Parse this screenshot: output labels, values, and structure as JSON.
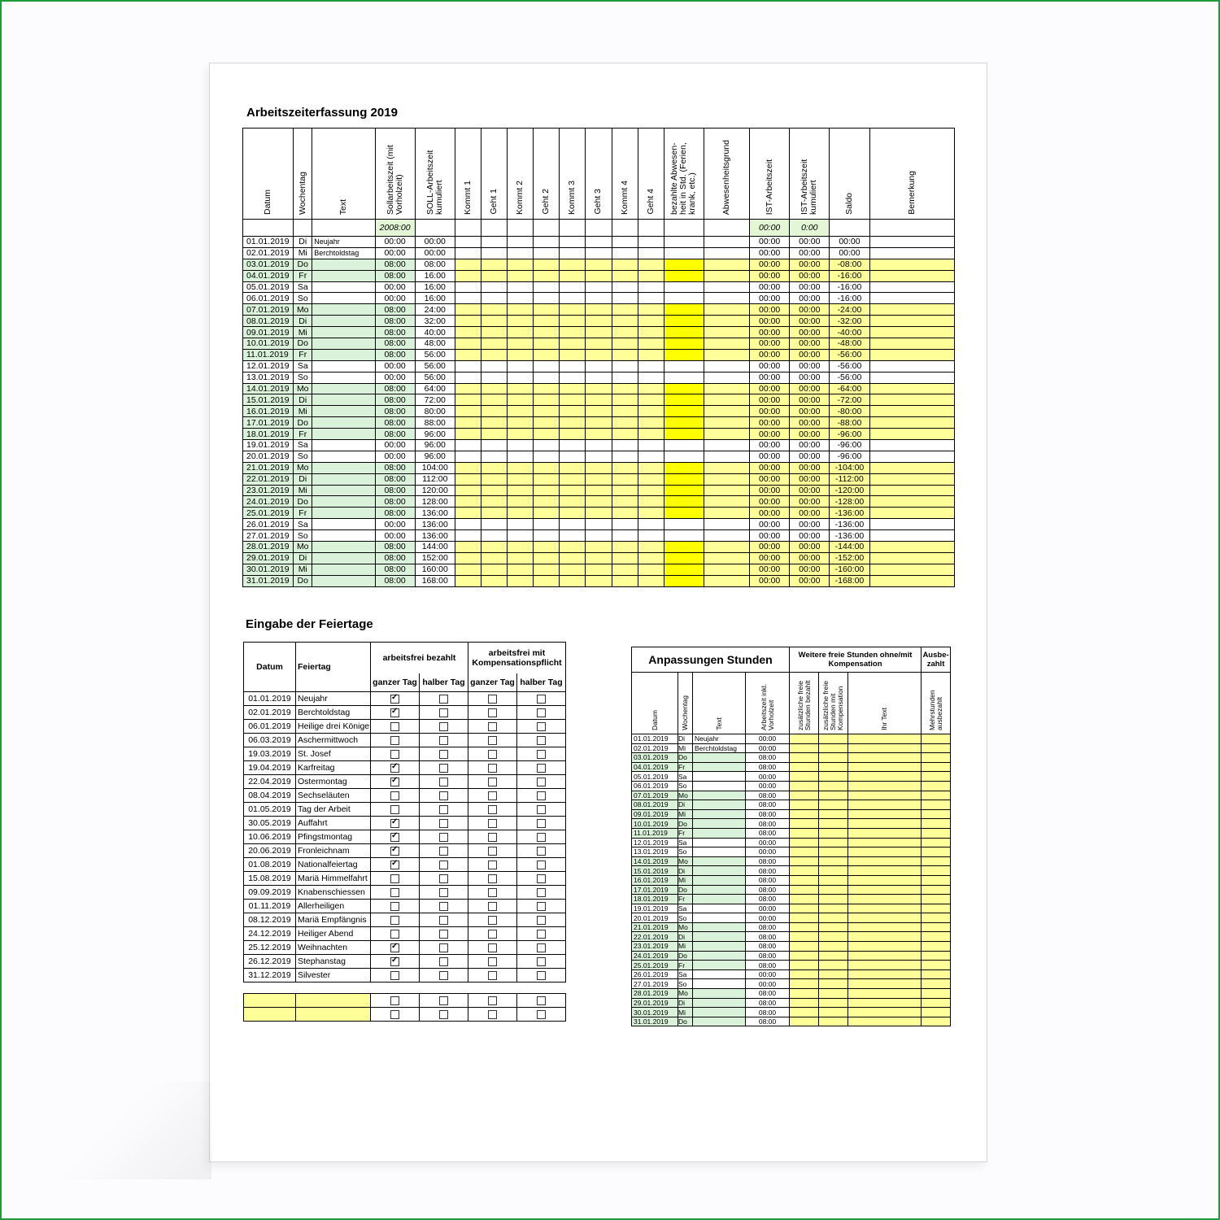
{
  "title_main": "Arbeitszeiterfassung   2019",
  "title_holidays": "Eingabe der Feiertage",
  "main": {
    "headers": [
      "Datum",
      "Wochentag",
      "Text",
      "Sollarbeitszeit (mit Vorholzeit)",
      "SOLL-Arbeitszeit kumuliert",
      "Kommt 1",
      "Geht 1",
      "Kommt 2",
      "Geht 2",
      "Kommt 3",
      "Geht 3",
      "Kommt 4",
      "Geht 4",
      "bezahlte Abwesen-heit in Std. (Ferien, krank, etc.)",
      "Abwesenheitsgrund",
      "IST-Arbeitszeit",
      "IST-Arbeitszeit kumuliert",
      "Saldo",
      "Bemerkung"
    ],
    "summary": {
      "soll": "2008:00",
      "ist": "00:00",
      "ist_kum": "0:00"
    },
    "rows": [
      [
        "01.01.2019",
        "Di",
        "Neujahr",
        "00:00",
        "00:00",
        "00:00",
        "00:00",
        "00:00"
      ],
      [
        "02.01.2019",
        "Mi",
        "Berchtoldstag",
        "00:00",
        "00:00",
        "00:00",
        "00:00",
        "00:00"
      ],
      [
        "03.01.2019",
        "Do",
        "",
        "08:00",
        "08:00",
        "00:00",
        "00:00",
        "-08:00"
      ],
      [
        "04.01.2019",
        "Fr",
        "",
        "08:00",
        "16:00",
        "00:00",
        "00:00",
        "-16:00"
      ],
      [
        "05.01.2019",
        "Sa",
        "",
        "00:00",
        "16:00",
        "00:00",
        "00:00",
        "-16:00"
      ],
      [
        "06.01.2019",
        "So",
        "",
        "00:00",
        "16:00",
        "00:00",
        "00:00",
        "-16:00"
      ],
      [
        "07.01.2019",
        "Mo",
        "",
        "08:00",
        "24:00",
        "00:00",
        "00:00",
        "-24:00"
      ],
      [
        "08.01.2019",
        "Di",
        "",
        "08:00",
        "32:00",
        "00:00",
        "00:00",
        "-32:00"
      ],
      [
        "09.01.2019",
        "Mi",
        "",
        "08:00",
        "40:00",
        "00:00",
        "00:00",
        "-40:00"
      ],
      [
        "10.01.2019",
        "Do",
        "",
        "08:00",
        "48:00",
        "00:00",
        "00:00",
        "-48:00"
      ],
      [
        "11.01.2019",
        "Fr",
        "",
        "08:00",
        "56:00",
        "00:00",
        "00:00",
        "-56:00"
      ],
      [
        "12.01.2019",
        "Sa",
        "",
        "00:00",
        "56:00",
        "00:00",
        "00:00",
        "-56:00"
      ],
      [
        "13.01.2019",
        "So",
        "",
        "00:00",
        "56:00",
        "00:00",
        "00:00",
        "-56:00"
      ],
      [
        "14.01.2019",
        "Mo",
        "",
        "08:00",
        "64:00",
        "00:00",
        "00:00",
        "-64:00"
      ],
      [
        "15.01.2019",
        "Di",
        "",
        "08:00",
        "72:00",
        "00:00",
        "00:00",
        "-72:00"
      ],
      [
        "16.01.2019",
        "Mi",
        "",
        "08:00",
        "80:00",
        "00:00",
        "00:00",
        "-80:00"
      ],
      [
        "17.01.2019",
        "Do",
        "",
        "08:00",
        "88:00",
        "00:00",
        "00:00",
        "-88:00"
      ],
      [
        "18.01.2019",
        "Fr",
        "",
        "08:00",
        "96:00",
        "00:00",
        "00:00",
        "-96:00"
      ],
      [
        "19.01.2019",
        "Sa",
        "",
        "00:00",
        "96:00",
        "00:00",
        "00:00",
        "-96:00"
      ],
      [
        "20.01.2019",
        "So",
        "",
        "00:00",
        "96:00",
        "00:00",
        "00:00",
        "-96:00"
      ],
      [
        "21.01.2019",
        "Mo",
        "",
        "08:00",
        "104:00",
        "00:00",
        "00:00",
        "-104:00"
      ],
      [
        "22.01.2019",
        "Di",
        "",
        "08:00",
        "112:00",
        "00:00",
        "00:00",
        "-112:00"
      ],
      [
        "23.01.2019",
        "Mi",
        "",
        "08:00",
        "120:00",
        "00:00",
        "00:00",
        "-120:00"
      ],
      [
        "24.01.2019",
        "Do",
        "",
        "08:00",
        "128:00",
        "00:00",
        "00:00",
        "-128:00"
      ],
      [
        "25.01.2019",
        "Fr",
        "",
        "08:00",
        "136:00",
        "00:00",
        "00:00",
        "-136:00"
      ],
      [
        "26.01.2019",
        "Sa",
        "",
        "00:00",
        "136:00",
        "00:00",
        "00:00",
        "-136:00"
      ],
      [
        "27.01.2019",
        "So",
        "",
        "00:00",
        "136:00",
        "00:00",
        "00:00",
        "-136:00"
      ],
      [
        "28.01.2019",
        "Mo",
        "",
        "08:00",
        "144:00",
        "00:00",
        "00:00",
        "-144:00"
      ],
      [
        "29.01.2019",
        "Di",
        "",
        "08:00",
        "152:00",
        "00:00",
        "00:00",
        "-152:00"
      ],
      [
        "30.01.2019",
        "Mi",
        "",
        "08:00",
        "160:00",
        "00:00",
        "00:00",
        "-160:00"
      ],
      [
        "31.01.2019",
        "Do",
        "",
        "08:00",
        "168:00",
        "00:00",
        "00:00",
        "-168:00"
      ]
    ]
  },
  "holidays": {
    "headers": {
      "datum": "Datum",
      "feiertag": "Feiertag",
      "group1": "arbeitsfrei bezahlt",
      "group2": "arbeitsfrei mit Kompensationspflicht",
      "ganz": "ganzer Tag",
      "halb": "halber Tag"
    },
    "rows": [
      [
        "01.01.2019",
        "Neujahr",
        1
      ],
      [
        "02.01.2019",
        "Berchtoldstag",
        1
      ],
      [
        "06.01.2019",
        "Heilige drei Könige",
        0
      ],
      [
        "06.03.2019",
        "Aschermittwoch",
        0
      ],
      [
        "19.03.2019",
        "St. Josef",
        0
      ],
      [
        "19.04.2019",
        "Karfreitag",
        1
      ],
      [
        "22.04.2019",
        "Ostermontag",
        1
      ],
      [
        "08.04.2019",
        "Sechseläuten",
        0
      ],
      [
        "01.05.2019",
        "Tag der Arbeit",
        0
      ],
      [
        "30.05.2019",
        "Auffahrt",
        1
      ],
      [
        "10.06.2019",
        "Pfingstmontag",
        1
      ],
      [
        "20.06.2019",
        "Fronleichnam",
        1
      ],
      [
        "01.08.2019",
        "Nationalfeiertag",
        1
      ],
      [
        "15.08.2019",
        "Mariä Himmelfahrt",
        0
      ],
      [
        "09.09.2019",
        "Knabenschiessen",
        0
      ],
      [
        "01.11.2019",
        "Allerheiligen",
        0
      ],
      [
        "08.12.2019",
        "Mariä Empfängnis",
        0
      ],
      [
        "24.12.2019",
        "Heiliger Abend",
        0
      ],
      [
        "25.12.2019",
        "Weihnachten",
        1
      ],
      [
        "26.12.2019",
        "Stephanstag",
        1
      ],
      [
        "31.12.2019",
        "Silvester",
        0
      ]
    ]
  },
  "adjust": {
    "title": "Anpassungen Stunden",
    "group": "Weitere freie Stunden ohne/mit Kompensation",
    "paid": "Ausbe-zahlt",
    "headers": [
      "Datum",
      "Wochentag",
      "Text",
      "Arbeitszeit inkl. Vorholzeit",
      "zusätzliche freie Stunden bezahlt",
      "zusätzliche freie Stunden mit Kompensation",
      "Ihr Text",
      "Mehrstunden ausbezahlt"
    ]
  }
}
